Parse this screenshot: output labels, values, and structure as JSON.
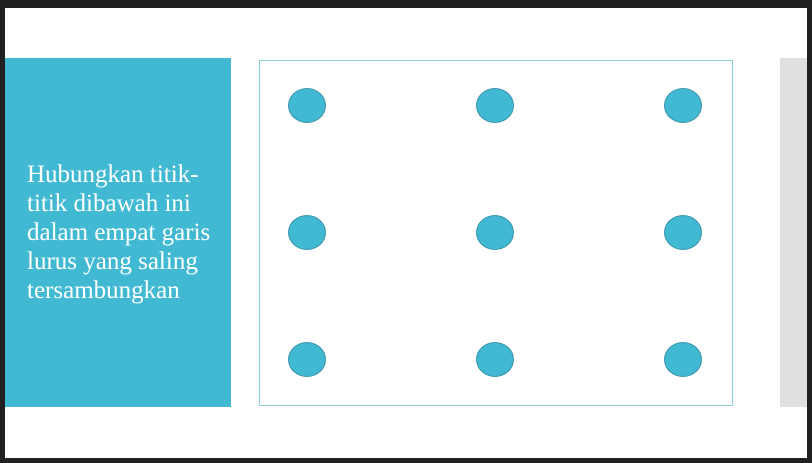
{
  "slide": {
    "instruction": "Hubungkan titik-titik dibawah ini dalam empat garis lurus yang saling tersambungkan"
  },
  "dot_grid": {
    "rows": 3,
    "columns": 3,
    "dot_color": "#42b9d3"
  },
  "colors": {
    "panel": "#42b9d3",
    "board_border": "#8fd0de",
    "background": "#202020"
  }
}
